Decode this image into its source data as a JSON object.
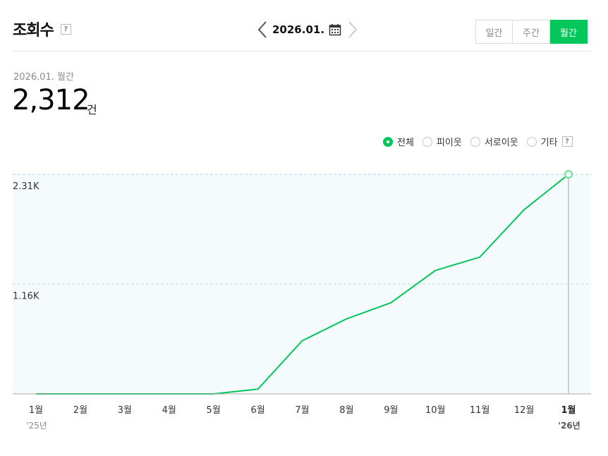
{
  "header": {
    "title": "조회수",
    "help": "?",
    "period": "2026.01.",
    "tabs": [
      {
        "label": "일간",
        "active": false
      },
      {
        "label": "주간",
        "active": false
      },
      {
        "label": "월간",
        "active": true
      }
    ]
  },
  "summary": {
    "label": "2026.01. 월간",
    "value": "2,312",
    "unit": "건"
  },
  "filters": {
    "options": [
      {
        "label": "전체",
        "selected": true
      },
      {
        "label": "피이웃",
        "selected": false
      },
      {
        "label": "서로이웃",
        "selected": false
      },
      {
        "label": "기타",
        "selected": false
      }
    ],
    "help": "?"
  },
  "colors": {
    "accent": "#03c75a",
    "plot_bg": "#f5fafd",
    "grid": "#d7e9ee"
  },
  "chart_data": {
    "type": "line",
    "categories": [
      "1월",
      "2월",
      "3월",
      "4월",
      "5월",
      "6월",
      "7월",
      "8월",
      "9월",
      "10월",
      "11월",
      "12월",
      "1월"
    ],
    "year_labels": [
      "'25년",
      "",
      "",
      "",
      "",
      "",
      "",
      "",
      "",
      "",
      "",
      "",
      "'26년"
    ],
    "series": [
      {
        "values": [
          0,
          0,
          0,
          0,
          0,
          50,
          560,
          790,
          960,
          1300,
          1440,
          1940,
          2312
        ]
      }
    ],
    "y_ticks": [
      {
        "value": 1156,
        "label": "1.16K"
      },
      {
        "value": 2312,
        "label": "2.31K"
      }
    ],
    "ylim": [
      0,
      2312
    ],
    "highlight_index": 12,
    "grid": true,
    "legend": "top-right"
  }
}
